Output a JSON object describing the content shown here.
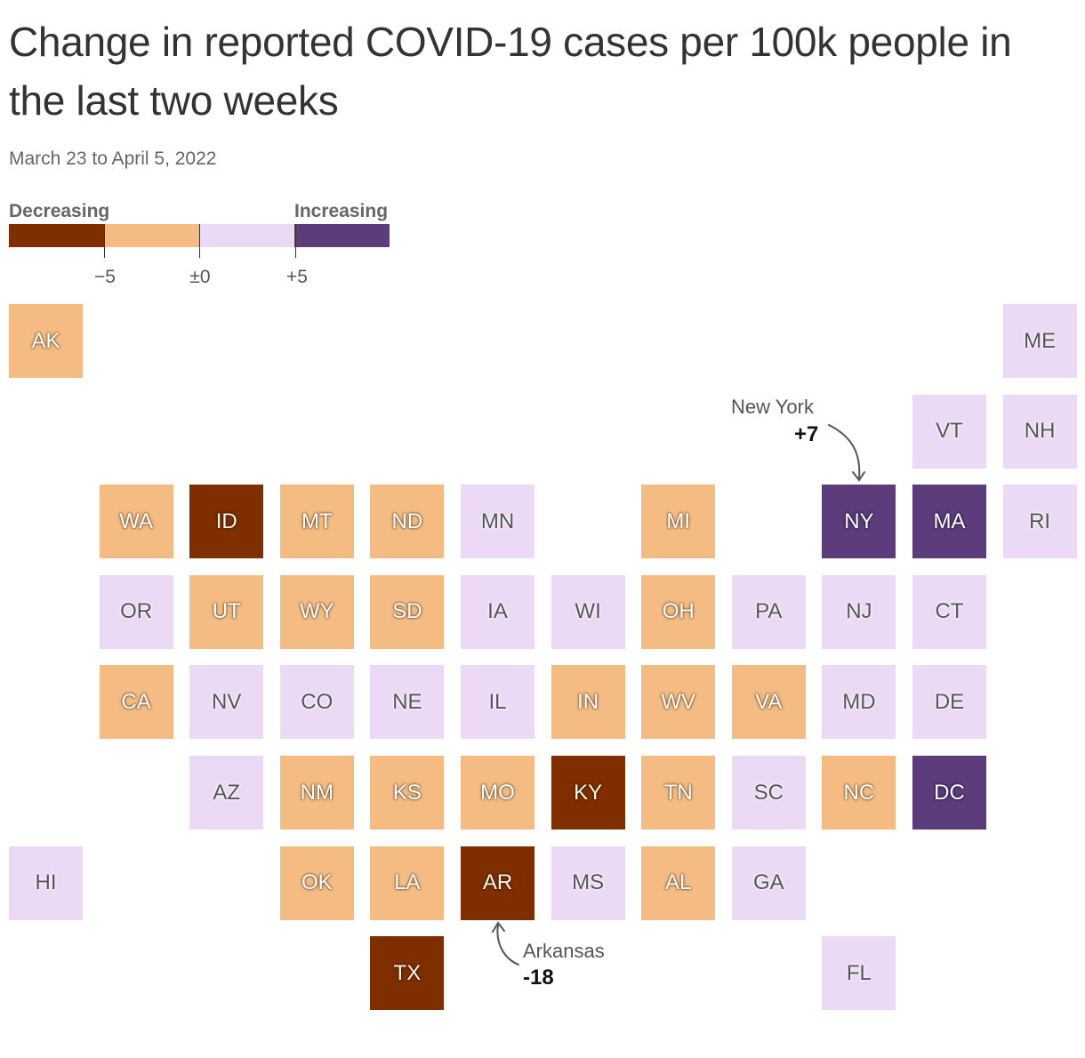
{
  "title": "Change in reported COVID-19 cases per 100k people in the last two weeks",
  "subtitle": "March 23 to April 5, 2022",
  "legend": {
    "left_label": "Decreasing",
    "right_label": "Increasing",
    "ticks": [
      "−5",
      "±0",
      "+5"
    ],
    "colors": [
      "#7f2e00",
      "#f4bb82",
      "#ecd9f6",
      "#5c3c7a"
    ]
  },
  "categories": {
    "strong_decrease": "#7f2e00",
    "decrease": "#f4bb82",
    "increase": "#ecd9f6",
    "strong_increase": "#5c3c7a"
  },
  "states": [
    {
      "abbr": "AK",
      "cat": "decrease",
      "col": 0,
      "row": 0
    },
    {
      "abbr": "ME",
      "cat": "increase",
      "col": 11,
      "row": 0
    },
    {
      "abbr": "VT",
      "cat": "increase",
      "col": 10,
      "row": 1
    },
    {
      "abbr": "NH",
      "cat": "increase",
      "col": 11,
      "row": 1
    },
    {
      "abbr": "WA",
      "cat": "decrease",
      "col": 1,
      "row": 2
    },
    {
      "abbr": "ID",
      "cat": "strong_decrease",
      "col": 2,
      "row": 2
    },
    {
      "abbr": "MT",
      "cat": "decrease",
      "col": 3,
      "row": 2
    },
    {
      "abbr": "ND",
      "cat": "decrease",
      "col": 4,
      "row": 2
    },
    {
      "abbr": "MN",
      "cat": "increase",
      "col": 5,
      "row": 2
    },
    {
      "abbr": "MI",
      "cat": "decrease",
      "col": 7,
      "row": 2
    },
    {
      "abbr": "NY",
      "cat": "strong_increase",
      "col": 9,
      "row": 2
    },
    {
      "abbr": "MA",
      "cat": "strong_increase",
      "col": 10,
      "row": 2
    },
    {
      "abbr": "RI",
      "cat": "increase",
      "col": 11,
      "row": 2
    },
    {
      "abbr": "OR",
      "cat": "increase",
      "col": 1,
      "row": 3
    },
    {
      "abbr": "UT",
      "cat": "decrease",
      "col": 2,
      "row": 3
    },
    {
      "abbr": "WY",
      "cat": "decrease",
      "col": 3,
      "row": 3
    },
    {
      "abbr": "SD",
      "cat": "decrease",
      "col": 4,
      "row": 3
    },
    {
      "abbr": "IA",
      "cat": "increase",
      "col": 5,
      "row": 3
    },
    {
      "abbr": "WI",
      "cat": "increase",
      "col": 6,
      "row": 3
    },
    {
      "abbr": "OH",
      "cat": "decrease",
      "col": 7,
      "row": 3
    },
    {
      "abbr": "PA",
      "cat": "increase",
      "col": 8,
      "row": 3
    },
    {
      "abbr": "NJ",
      "cat": "increase",
      "col": 9,
      "row": 3
    },
    {
      "abbr": "CT",
      "cat": "increase",
      "col": 10,
      "row": 3
    },
    {
      "abbr": "CA",
      "cat": "decrease",
      "col": 1,
      "row": 4
    },
    {
      "abbr": "NV",
      "cat": "increase",
      "col": 2,
      "row": 4
    },
    {
      "abbr": "CO",
      "cat": "increase",
      "col": 3,
      "row": 4
    },
    {
      "abbr": "NE",
      "cat": "increase",
      "col": 4,
      "row": 4
    },
    {
      "abbr": "IL",
      "cat": "increase",
      "col": 5,
      "row": 4
    },
    {
      "abbr": "IN",
      "cat": "decrease",
      "col": 6,
      "row": 4
    },
    {
      "abbr": "WV",
      "cat": "decrease",
      "col": 7,
      "row": 4
    },
    {
      "abbr": "VA",
      "cat": "decrease",
      "col": 8,
      "row": 4
    },
    {
      "abbr": "MD",
      "cat": "increase",
      "col": 9,
      "row": 4
    },
    {
      "abbr": "DE",
      "cat": "increase",
      "col": 10,
      "row": 4
    },
    {
      "abbr": "AZ",
      "cat": "increase",
      "col": 2,
      "row": 5
    },
    {
      "abbr": "NM",
      "cat": "decrease",
      "col": 3,
      "row": 5
    },
    {
      "abbr": "KS",
      "cat": "decrease",
      "col": 4,
      "row": 5
    },
    {
      "abbr": "MO",
      "cat": "decrease",
      "col": 5,
      "row": 5
    },
    {
      "abbr": "KY",
      "cat": "strong_decrease",
      "col": 6,
      "row": 5
    },
    {
      "abbr": "TN",
      "cat": "decrease",
      "col": 7,
      "row": 5
    },
    {
      "abbr": "SC",
      "cat": "increase",
      "col": 8,
      "row": 5
    },
    {
      "abbr": "NC",
      "cat": "decrease",
      "col": 9,
      "row": 5
    },
    {
      "abbr": "DC",
      "cat": "strong_increase",
      "col": 10,
      "row": 5
    },
    {
      "abbr": "HI",
      "cat": "increase",
      "col": 0,
      "row": 6
    },
    {
      "abbr": "OK",
      "cat": "decrease",
      "col": 3,
      "row": 6
    },
    {
      "abbr": "LA",
      "cat": "decrease",
      "col": 4,
      "row": 6
    },
    {
      "abbr": "AR",
      "cat": "strong_decrease",
      "col": 5,
      "row": 6
    },
    {
      "abbr": "MS",
      "cat": "increase",
      "col": 6,
      "row": 6
    },
    {
      "abbr": "AL",
      "cat": "decrease",
      "col": 7,
      "row": 6
    },
    {
      "abbr": "GA",
      "cat": "increase",
      "col": 8,
      "row": 6
    },
    {
      "abbr": "TX",
      "cat": "strong_decrease",
      "col": 4,
      "row": 7
    },
    {
      "abbr": "FL",
      "cat": "increase",
      "col": 9,
      "row": 7
    }
  ],
  "annotations": {
    "new_york": {
      "name": "New York",
      "value": "+7"
    },
    "arkansas": {
      "name": "Arkansas",
      "value": "-18"
    }
  }
}
